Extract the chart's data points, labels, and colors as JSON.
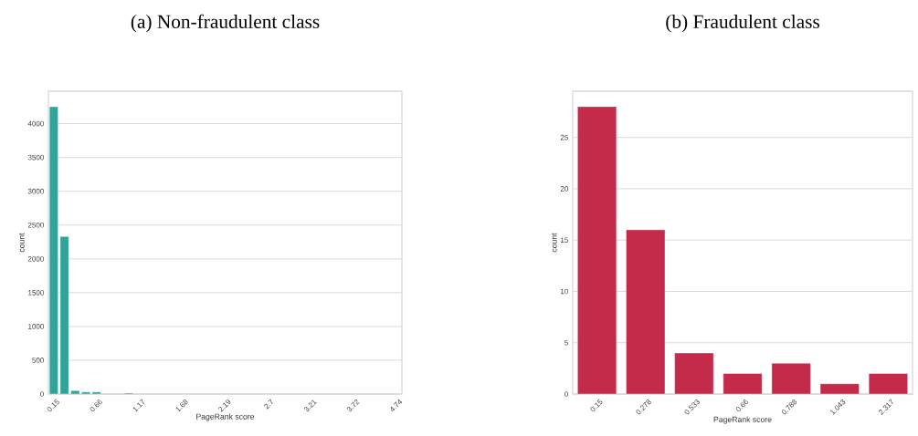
{
  "chart_data": [
    {
      "type": "bar",
      "title": "(a) Non-fraudulent class",
      "xlabel": "PageRank score",
      "ylabel": "count",
      "categories": [
        "0.15",
        null,
        null,
        null,
        "0.66",
        null,
        null,
        null,
        "1.17",
        null,
        null,
        null,
        "1.68",
        null,
        null,
        null,
        "2.19",
        null,
        null,
        null,
        "2.7",
        null,
        null,
        null,
        "3.21",
        null,
        null,
        null,
        "3.72",
        null,
        null,
        null,
        "4.74"
      ],
      "values": [
        4250,
        2330,
        50,
        30,
        30,
        null,
        null,
        15,
        null,
        null,
        null,
        null,
        null,
        null,
        null,
        null,
        null,
        null,
        null,
        null,
        null,
        null,
        null,
        null,
        null,
        null,
        null,
        null,
        null,
        null,
        null,
        null,
        null
      ],
      "color": "#31a49a",
      "ylim": [
        0,
        4480
      ],
      "yticks": [
        0,
        500,
        1000,
        1500,
        2000,
        2500,
        3000,
        3500,
        4000
      ],
      "grid": "y"
    },
    {
      "type": "bar",
      "title": "(b) Fraudulent class",
      "xlabel": "PageRank score",
      "ylabel": "count",
      "categories": [
        "0.15",
        "0.278",
        "0.533",
        "0.66",
        "0.788",
        "1.043",
        "2.317"
      ],
      "values": [
        28,
        16,
        4,
        2,
        3,
        1,
        2
      ],
      "color": "#c42b4a",
      "ylim": [
        0,
        29.5
      ],
      "yticks": [
        0,
        5,
        10,
        15,
        20,
        25
      ],
      "grid": "y"
    }
  ]
}
